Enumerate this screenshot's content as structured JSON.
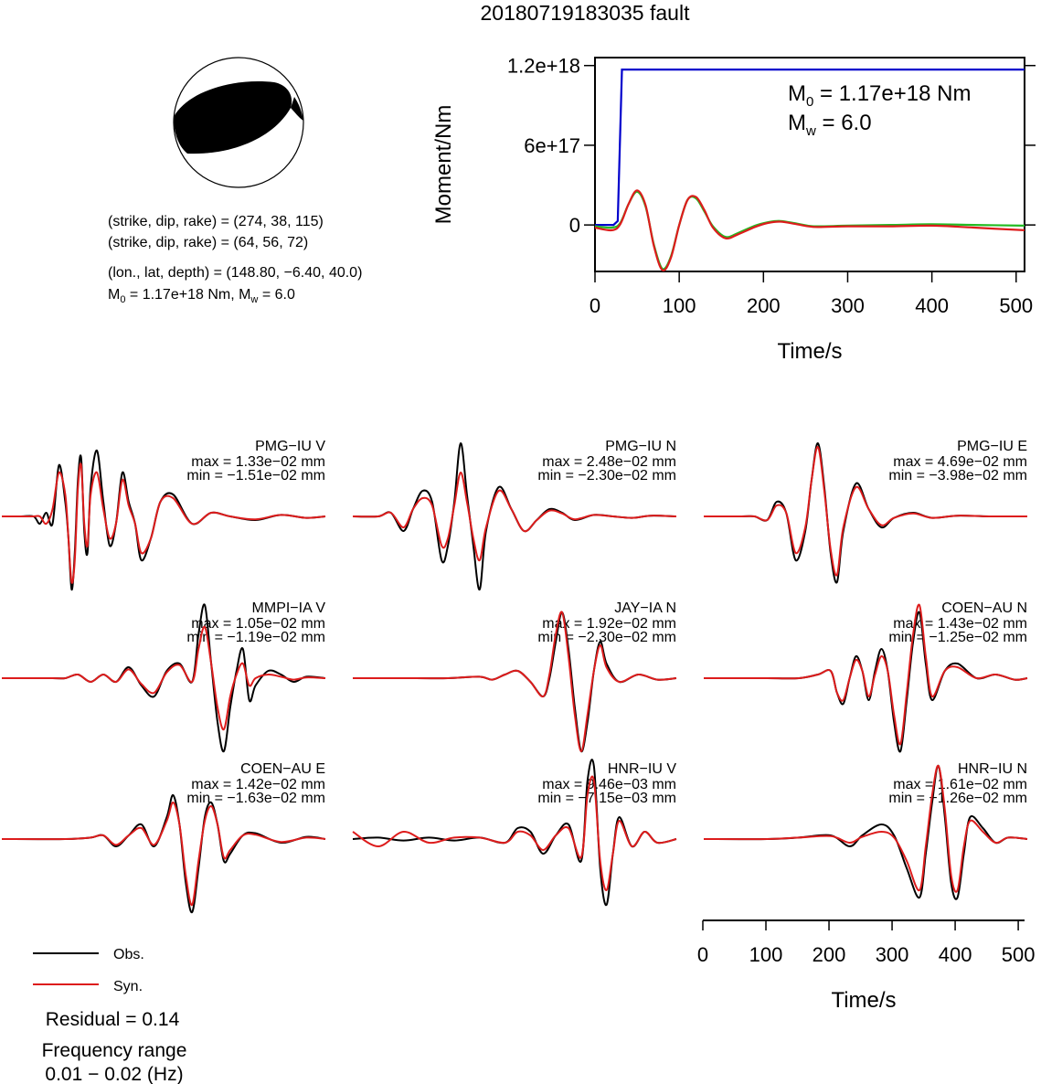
{
  "title": "20180719183035 fault",
  "beachball": {
    "np1": "(strike, dip, rake) = (274, 38, 115)",
    "np2": "(strike, dip, rake) = (64, 56, 72)",
    "location": "(lon., lat, depth) = (148.80, −6.40, 40.0)",
    "m0_text_a": "M",
    "m0_sub": "0",
    "m0_text_b": " = 1.17e+18 Nm, M",
    "mw_sub": "w",
    "mw_text": " = 6.0"
  },
  "colors": {
    "obs": "#000000",
    "syn": "#dd1c1c",
    "cumulative": "#0000cc",
    "rate_green": "#22bb22",
    "rate_red": "#dd1c1c"
  },
  "chart_data": [
    {
      "type": "line",
      "ylabel": "Moment/Nm",
      "xlabel": "Time/s",
      "xlim": [
        0,
        510
      ],
      "ylim": [
        -3.5e+17,
        1.26e+18
      ],
      "xticks": [
        0,
        100,
        200,
        300,
        400,
        500
      ],
      "xtick_labels": [
        "0",
        "100",
        "200",
        "300",
        "400",
        "500"
      ],
      "yticks": [
        0,
        6e+17,
        1.2e+18
      ],
      "ytick_labels": [
        "0",
        "6e+17",
        "1.2e+18"
      ],
      "annotation": {
        "m0_a": "M",
        "m0_sub": "0",
        "m0_b": " = 1.17e+18 Nm",
        "mw_a": "M",
        "mw_sub": "w",
        "mw_b": " = 6.0"
      },
      "series": [
        {
          "role": "cumulative",
          "x": [
            0,
            22,
            27,
            32,
            34,
            510
          ],
          "y": [
            0,
            0,
            3e+16,
            1.17e+18,
            1.17e+18,
            1.17e+18
          ]
        },
        {
          "role": "rate_green",
          "x": [
            0,
            20,
            30,
            40,
            50,
            60,
            70,
            80,
            90,
            100,
            110,
            120,
            130,
            140,
            155,
            170,
            190,
            205,
            220,
            240,
            260,
            300,
            350,
            400,
            450,
            510
          ],
          "y": [
            -1e+16,
            -2e+16,
            1.5e+16,
            1.6e+17,
            2.5e+17,
            1.4e+17,
            -1.5e+17,
            -3.3e+17,
            -2.4e+17,
            0,
            1.9e+17,
            2e+17,
            1e+17,
            -1e+16,
            -9e+16,
            -6e+16,
            -5000000000000000.0,
            2e+16,
            3e+16,
            1e+16,
            -1e+16,
            -5000000000000000.0,
            0,
            5000000000000000.0,
            0,
            -5000000000000000.0
          ]
        },
        {
          "role": "rate_red",
          "x": [
            0,
            20,
            30,
            40,
            50,
            60,
            70,
            80,
            90,
            100,
            110,
            120,
            130,
            140,
            155,
            170,
            190,
            205,
            220,
            240,
            260,
            300,
            350,
            400,
            450,
            510
          ],
          "y": [
            -2e+16,
            -4e+16,
            5000000000000000.0,
            1.6e+17,
            2.6e+17,
            1.5e+17,
            -1.6e+17,
            -3.4e+17,
            -2.5e+17,
            0,
            1.9e+17,
            2.1e+17,
            1.1e+17,
            -2e+16,
            -1e+17,
            -7e+16,
            -1.5e+16,
            1.5e+16,
            2.5e+16,
            5000000000000000.0,
            -1.5e+16,
            -1e+16,
            -1e+16,
            -5000000000000000.0,
            -2e+16,
            -4e+16
          ]
        }
      ]
    },
    {
      "type": "line",
      "xlabel": "Time/s",
      "xlim": [
        0,
        510
      ],
      "xticks": [
        0,
        100,
        200,
        300,
        400,
        500
      ],
      "xtick_labels": [
        "0",
        "100",
        "200",
        "300",
        "400",
        "500"
      ],
      "legend": {
        "obs": "Obs.",
        "syn": "Syn."
      },
      "residual": "Residual = 0.14",
      "freq_label": "Frequency range",
      "freq_range": "0.01 − 0.02 (Hz)",
      "stations": [
        {
          "name": "PMG−IU V",
          "max": "max = 1.33e−02 mm",
          "min": "min = −1.51e−02 mm",
          "x": [
            0,
            30,
            50,
            60,
            70,
            80,
            90,
            100,
            105,
            110,
            115,
            120,
            125,
            130,
            135,
            140,
            150,
            160,
            170,
            180,
            190,
            200,
            210,
            220,
            235,
            250,
            270,
            300,
            330,
            360,
            400,
            440,
            480,
            510
          ],
          "obs": [
            0,
            0,
            0,
            -0.1,
            0.05,
            -0.1,
            0.7,
            0.2,
            -0.3,
            -1.0,
            -0.5,
            0.5,
            0.8,
            -0.2,
            -0.5,
            0.4,
            0.9,
            0.2,
            -0.4,
            -0.1,
            0.6,
            0.2,
            -0.1,
            -0.6,
            -0.3,
            0.2,
            0.3,
            -0.1,
            0.05,
            0,
            -0.05,
            0.02,
            -0.02,
            0
          ],
          "syn": [
            0,
            0,
            0,
            0,
            -0.1,
            0.1,
            0.6,
            0.3,
            -0.3,
            -0.9,
            -0.6,
            0.4,
            0.7,
            -0.1,
            -0.4,
            0.3,
            0.6,
            0.1,
            -0.3,
            -0.1,
            0.5,
            0.15,
            -0.1,
            -0.5,
            -0.3,
            0.2,
            0.25,
            -0.1,
            0.05,
            0,
            -0.04,
            0.02,
            -0.02,
            0
          ]
        },
        {
          "name": "PMG−IU N",
          "max": "max = 2.48e−02 mm",
          "min": "min = −2.30e−02 mm",
          "x": [
            0,
            40,
            60,
            80,
            95,
            110,
            125,
            140,
            150,
            160,
            170,
            180,
            190,
            200,
            210,
            230,
            250,
            270,
            290,
            310,
            330,
            350,
            380,
            410,
            440,
            470,
            510
          ],
          "obs": [
            0,
            0,
            0.05,
            -0.2,
            0.1,
            0.35,
            0.2,
            -0.6,
            -0.4,
            0.2,
            1.0,
            0.3,
            -0.4,
            -1.0,
            -0.2,
            0.4,
            0.1,
            -0.2,
            -0.05,
            0.1,
            0.05,
            -0.05,
            0.02,
            0,
            -0.02,
            0.01,
            0
          ],
          "syn": [
            0,
            0,
            0.05,
            -0.15,
            0.1,
            0.25,
            0.15,
            -0.4,
            -0.3,
            0.15,
            0.6,
            0.2,
            -0.3,
            -0.6,
            -0.15,
            0.35,
            0.1,
            -0.2,
            -0.05,
            0.08,
            0.04,
            -0.04,
            0.02,
            0,
            -0.02,
            0.01,
            0
          ]
        },
        {
          "name": "PMG−IU E",
          "max": "max = 4.69e−02 mm",
          "min": "min = −3.98e−02 mm",
          "x": [
            0,
            60,
            80,
            100,
            115,
            130,
            145,
            160,
            170,
            180,
            190,
            200,
            210,
            220,
            240,
            260,
            280,
            300,
            330,
            360,
            400,
            450,
            510
          ],
          "obs": [
            0,
            0,
            0,
            -0.05,
            0.2,
            0.05,
            -0.6,
            -0.2,
            0.5,
            1.0,
            0.4,
            -0.5,
            -0.9,
            -0.2,
            0.45,
            0.1,
            -0.15,
            -0.02,
            0.05,
            -0.02,
            0.01,
            0,
            0
          ],
          "syn": [
            0,
            0,
            0,
            -0.05,
            0.15,
            0.05,
            -0.5,
            -0.15,
            0.5,
            0.95,
            0.35,
            -0.45,
            -0.8,
            -0.15,
            0.4,
            0.1,
            -0.12,
            -0.02,
            0.04,
            -0.02,
            0.01,
            0,
            0
          ]
        },
        {
          "name": "MMPI−IA V",
          "max": "max = 1.05e−02 mm",
          "min": "min = −1.19e−02 mm",
          "x": [
            0,
            80,
            100,
            120,
            140,
            160,
            180,
            200,
            220,
            240,
            260,
            280,
            300,
            310,
            320,
            330,
            340,
            350,
            360,
            370,
            380,
            390,
            400,
            420,
            440,
            460,
            480,
            510
          ],
          "obs": [
            0,
            0,
            0,
            0.05,
            -0.05,
            0.05,
            -0.05,
            0.15,
            -0.1,
            -0.25,
            0.1,
            0.2,
            -0.05,
            0.6,
            1.0,
            0.2,
            -0.6,
            -1.0,
            -0.4,
            0.1,
            0.4,
            -0.3,
            -0.1,
            0.1,
            0.05,
            -0.05,
            0.02,
            0
          ],
          "syn": [
            0,
            0,
            0,
            0.05,
            -0.05,
            0.05,
            -0.05,
            0.12,
            -0.08,
            -0.2,
            0.08,
            0.18,
            -0.05,
            0.4,
            0.7,
            0.2,
            -0.4,
            -0.7,
            -0.25,
            0.05,
            0.2,
            -0.1,
            0,
            0.05,
            0.02,
            -0.02,
            0.01,
            0
          ]
        },
        {
          "name": "JAY−IA N",
          "max": "max = 1.92e−02 mm",
          "min": "min = −2.30e−02 mm",
          "x": [
            0,
            100,
            150,
            200,
            220,
            240,
            260,
            280,
            300,
            310,
            320,
            330,
            340,
            350,
            360,
            370,
            380,
            390,
            400,
            420,
            450,
            480,
            510
          ],
          "obs": [
            0,
            0,
            0,
            0.02,
            -0.02,
            0.05,
            0.1,
            -0.05,
            -0.25,
            0,
            0.5,
            0.9,
            0.4,
            -0.4,
            -1.0,
            -0.6,
            0.1,
            0.5,
            0.2,
            -0.05,
            0.05,
            -0.02,
            0
          ],
          "syn": [
            0,
            0,
            0,
            0.02,
            -0.02,
            0.05,
            0.1,
            -0.05,
            -0.25,
            0.05,
            0.6,
            0.9,
            0.3,
            -0.5,
            -1.0,
            -0.5,
            0.1,
            0.45,
            0.15,
            -0.05,
            0.05,
            -0.02,
            0
          ]
        },
        {
          "name": "COEN−AU N",
          "max": "max = 1.43e−02 mm",
          "min": "min = −1.25e−02 mm",
          "x": [
            0,
            100,
            150,
            180,
            200,
            210,
            220,
            230,
            240,
            250,
            260,
            270,
            280,
            290,
            300,
            310,
            320,
            330,
            340,
            350,
            360,
            380,
            400,
            430,
            460,
            490,
            510
          ],
          "obs": [
            0,
            0,
            0,
            0.05,
            0.1,
            -0.2,
            -0.35,
            0,
            0.3,
            0.1,
            -0.3,
            0.1,
            0.4,
            0.1,
            -0.6,
            -1.0,
            -0.3,
            0.5,
            0.9,
            0.2,
            -0.3,
            0.1,
            0.2,
            0,
            0.05,
            -0.02,
            0
          ],
          "syn": [
            0,
            0,
            0,
            0.05,
            0.1,
            -0.2,
            -0.3,
            0,
            0.25,
            0.1,
            -0.25,
            0.05,
            0.3,
            0.1,
            -0.5,
            -0.9,
            -0.2,
            0.6,
            1.0,
            0.3,
            -0.25,
            0.1,
            0.15,
            0,
            0.05,
            -0.02,
            0
          ]
        },
        {
          "name": "COEN−AU E",
          "max": "max = 1.42e−02 mm",
          "min": "min = −1.63e−02 mm",
          "x": [
            0,
            100,
            140,
            160,
            180,
            200,
            220,
            240,
            260,
            270,
            280,
            290,
            300,
            310,
            320,
            330,
            340,
            350,
            360,
            380,
            400,
            440,
            480,
            510
          ],
          "obs": [
            0,
            0,
            0.02,
            0.05,
            -0.1,
            0.05,
            0.2,
            -0.1,
            0.3,
            0.6,
            0.2,
            -0.6,
            -1.0,
            -0.4,
            0.3,
            0.5,
            0.2,
            -0.3,
            -0.2,
            0.05,
            0.08,
            -0.05,
            0.03,
            0
          ],
          "syn": [
            0,
            0,
            0.02,
            0.05,
            -0.08,
            0.05,
            0.15,
            -0.08,
            0.25,
            0.5,
            0.2,
            -0.5,
            -0.9,
            -0.3,
            0.25,
            0.45,
            0.2,
            -0.25,
            -0.15,
            0.05,
            0.06,
            -0.04,
            0.02,
            0
          ]
        },
        {
          "name": "HNR−IU V",
          "max": "max = 9.46e−03 mm",
          "min": "min = −7.15e−03 mm",
          "x": [
            0,
            40,
            80,
            120,
            160,
            200,
            240,
            260,
            280,
            300,
            320,
            340,
            360,
            370,
            380,
            390,
            400,
            410,
            420,
            440,
            460,
            480,
            510
          ],
          "obs": [
            0,
            0.02,
            -0.02,
            0.02,
            -0.02,
            0.02,
            -0.05,
            0.15,
            0.1,
            -0.2,
            0.05,
            0.2,
            -0.3,
            0.8,
            1.0,
            -0.4,
            -0.9,
            -0.2,
            0.3,
            -0.1,
            0.1,
            -0.05,
            0
          ],
          "syn": [
            0.1,
            -0.1,
            0.1,
            -0.05,
            0.02,
            0.02,
            -0.05,
            0.1,
            0.05,
            -0.15,
            0.05,
            0.15,
            -0.25,
            0.6,
            0.8,
            -0.3,
            -0.7,
            -0.2,
            0.25,
            -0.1,
            0.1,
            -0.05,
            0
          ]
        },
        {
          "name": "HNR−IU N",
          "max": "max = 1.61e−02 mm",
          "min": "min = −1.26e−02 mm",
          "x": [
            0,
            100,
            150,
            200,
            230,
            250,
            280,
            300,
            320,
            340,
            350,
            360,
            370,
            380,
            390,
            400,
            410,
            420,
            440,
            460,
            480,
            510
          ],
          "obs": [
            0,
            0,
            0.02,
            0.05,
            -0.1,
            0.05,
            0.2,
            0.05,
            -0.4,
            -0.8,
            -0.2,
            0.5,
            1.0,
            0.3,
            -0.6,
            -0.8,
            -0.2,
            0.3,
            0.15,
            -0.05,
            0.02,
            0
          ],
          "syn": [
            0,
            0,
            0.02,
            0.04,
            -0.05,
            0.03,
            0.1,
            0.02,
            -0.3,
            -0.7,
            -0.1,
            0.6,
            1.0,
            0.4,
            -0.5,
            -0.7,
            -0.1,
            0.25,
            0.1,
            -0.05,
            0.02,
            0
          ]
        }
      ]
    }
  ]
}
